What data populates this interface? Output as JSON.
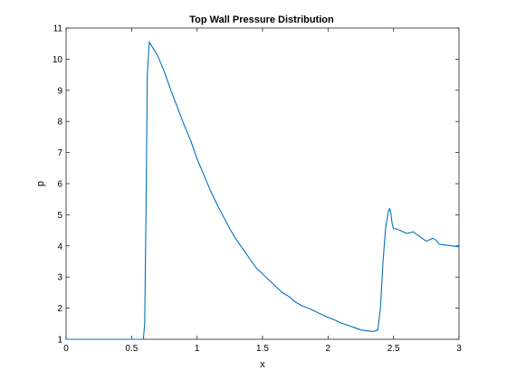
{
  "chart_data": {
    "type": "line",
    "title": "Top Wall Pressure Distribution",
    "xlabel": "x",
    "ylabel": "p",
    "xlim": [
      0,
      3
    ],
    "ylim": [
      1,
      11
    ],
    "xticks": [
      0,
      0.5,
      1,
      1.5,
      2,
      2.5,
      3
    ],
    "xtick_labels": [
      "0",
      "0.5",
      "1",
      "1.5",
      "2",
      "2.5",
      "3"
    ],
    "yticks": [
      1,
      2,
      3,
      4,
      5,
      6,
      7,
      8,
      9,
      10,
      11
    ],
    "ytick_labels": [
      "1",
      "2",
      "3",
      "4",
      "5",
      "6",
      "7",
      "8",
      "9",
      "10",
      "11"
    ],
    "grid": false,
    "line_color": "#0072bd",
    "series": [
      {
        "x": [
          0,
          0.5,
          0.59,
          0.6,
          0.61,
          0.62,
          0.635,
          0.65,
          0.7,
          0.75,
          0.8,
          0.85,
          0.9,
          0.95,
          1.0,
          1.05,
          1.1,
          1.15,
          1.2,
          1.25,
          1.3,
          1.35,
          1.4,
          1.45,
          1.5,
          1.55,
          1.6,
          1.65,
          1.7,
          1.75,
          1.8,
          1.85,
          1.9,
          1.95,
          2.0,
          2.05,
          2.1,
          2.15,
          2.2,
          2.25,
          2.3,
          2.35,
          2.38,
          2.4,
          2.42,
          2.44,
          2.46,
          2.47,
          2.48,
          2.49,
          2.5,
          2.52,
          2.55,
          2.6,
          2.65,
          2.7,
          2.75,
          2.8,
          2.82,
          2.85,
          2.9,
          2.95,
          3.0
        ],
        "y": [
          1.0,
          1.0,
          1.0,
          1.5,
          5.0,
          9.5,
          10.55,
          10.45,
          10.1,
          9.6,
          9.0,
          8.45,
          7.9,
          7.4,
          6.8,
          6.3,
          5.8,
          5.35,
          4.95,
          4.55,
          4.2,
          3.9,
          3.6,
          3.3,
          3.1,
          2.9,
          2.7,
          2.5,
          2.38,
          2.2,
          2.08,
          2.0,
          1.9,
          1.8,
          1.7,
          1.62,
          1.52,
          1.45,
          1.38,
          1.3,
          1.27,
          1.25,
          1.3,
          2.0,
          3.5,
          4.6,
          5.1,
          5.2,
          5.05,
          4.7,
          4.55,
          4.55,
          4.5,
          4.4,
          4.45,
          4.3,
          4.15,
          4.25,
          4.2,
          4.05,
          4.03,
          4.0,
          3.97
        ]
      }
    ]
  }
}
